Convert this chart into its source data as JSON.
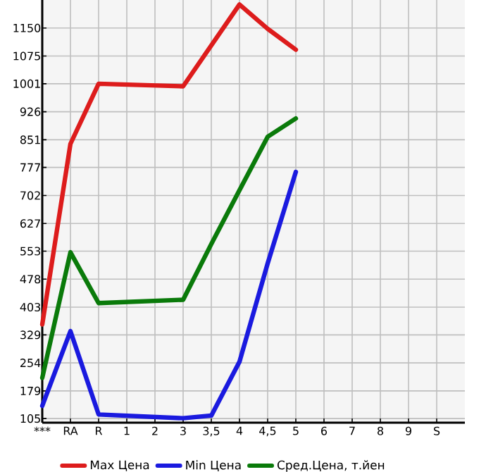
{
  "chart_data": {
    "type": "line",
    "categories": [
      "***",
      "RA",
      "R",
      "1",
      "2",
      "3",
      "3,5",
      "4",
      "4,5",
      "5",
      "6",
      "7",
      "8",
      "9",
      "S"
    ],
    "series": [
      {
        "name": "Max Цена",
        "color": "#dd1c1c",
        "values": [
          357,
          840,
          1001,
          null,
          null,
          994,
          null,
          1213,
          1148,
          1092,
          null,
          null,
          null,
          null,
          null
        ]
      },
      {
        "name": "Min Цена",
        "color": "#1a1adf",
        "values": [
          139,
          339,
          116,
          null,
          null,
          106,
          113,
          257,
          520,
          765,
          null,
          null,
          null,
          null,
          null
        ]
      },
      {
        "name": "Сред.Цена, т.йен",
        "color": "#0a7a0a",
        "values": [
          214,
          550,
          414,
          null,
          null,
          423,
          572,
          716,
          859,
          908,
          null,
          null,
          null,
          null,
          null
        ]
      }
    ],
    "ylim": [
      94,
      1225
    ],
    "yticks": [
      105,
      179,
      254,
      329,
      403,
      478,
      553,
      627,
      702,
      777,
      851,
      926,
      1001,
      1075,
      1150
    ],
    "grid": true,
    "legend": "bottom",
    "marker": "none",
    "line_style": "solid"
  }
}
